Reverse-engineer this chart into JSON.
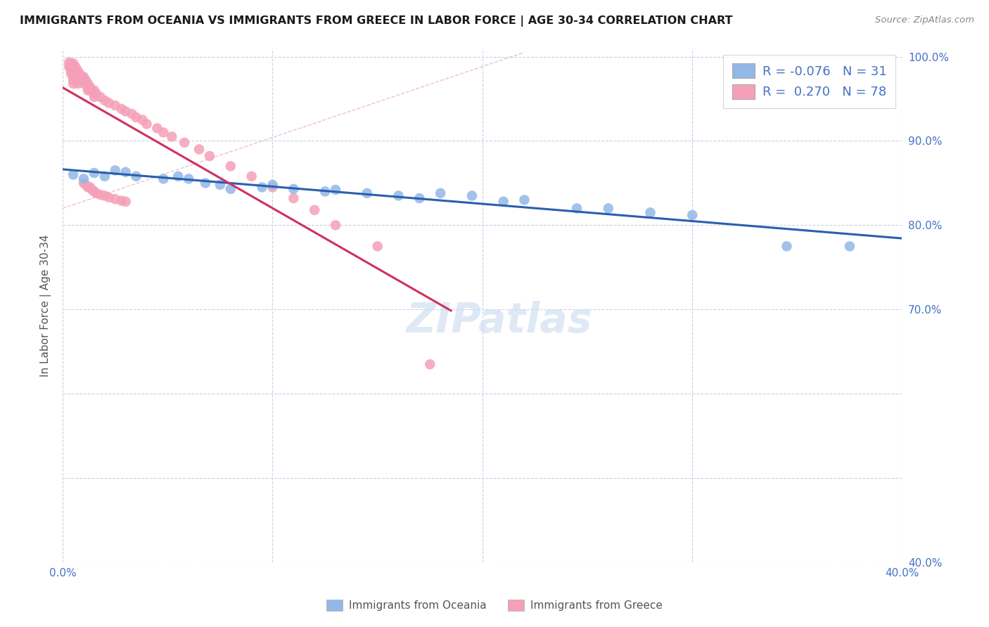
{
  "title": "IMMIGRANTS FROM OCEANIA VS IMMIGRANTS FROM GREECE IN LABOR FORCE | AGE 30-34 CORRELATION CHART",
  "source": "Source: ZipAtlas.com",
  "ylabel": "In Labor Force | Age 30-34",
  "xlim": [
    0.0,
    0.4
  ],
  "ylim": [
    0.4,
    1.01
  ],
  "r_oceania": -0.076,
  "n_oceania": 31,
  "r_greece": 0.27,
  "n_greece": 78,
  "color_oceania": "#92b8e8",
  "color_greece": "#f5a0b8",
  "trendline_oceania": "#2a5fb0",
  "trendline_greece": "#d03060",
  "dashed_line_color": "#e8b0c0",
  "watermark": "ZIPatlas",
  "oceania_x": [
    0.005,
    0.01,
    0.015,
    0.02,
    0.025,
    0.03,
    0.035,
    0.048,
    0.055,
    0.06,
    0.068,
    0.075,
    0.08,
    0.095,
    0.1,
    0.11,
    0.125,
    0.13,
    0.145,
    0.16,
    0.17,
    0.18,
    0.195,
    0.21,
    0.22,
    0.245,
    0.26,
    0.28,
    0.3,
    0.345,
    0.375
  ],
  "oceania_y": [
    0.86,
    0.855,
    0.862,
    0.858,
    0.865,
    0.863,
    0.858,
    0.855,
    0.858,
    0.855,
    0.85,
    0.848,
    0.843,
    0.845,
    0.848,
    0.843,
    0.84,
    0.842,
    0.838,
    0.835,
    0.832,
    0.838,
    0.835,
    0.828,
    0.83,
    0.82,
    0.82,
    0.815,
    0.812,
    0.775,
    0.775
  ],
  "greece_x": [
    0.003,
    0.003,
    0.004,
    0.004,
    0.004,
    0.004,
    0.005,
    0.005,
    0.005,
    0.005,
    0.005,
    0.005,
    0.005,
    0.006,
    0.006,
    0.006,
    0.007,
    0.007,
    0.007,
    0.007,
    0.007,
    0.008,
    0.008,
    0.008,
    0.009,
    0.009,
    0.01,
    0.01,
    0.01,
    0.01,
    0.011,
    0.011,
    0.011,
    0.012,
    0.012,
    0.012,
    0.012,
    0.013,
    0.013,
    0.013,
    0.014,
    0.014,
    0.015,
    0.015,
    0.015,
    0.015,
    0.016,
    0.016,
    0.018,
    0.018,
    0.02,
    0.02,
    0.022,
    0.022,
    0.025,
    0.025,
    0.028,
    0.028,
    0.03,
    0.03,
    0.033,
    0.035,
    0.038,
    0.04,
    0.045,
    0.048,
    0.052,
    0.058,
    0.065,
    0.07,
    0.08,
    0.09,
    0.1,
    0.11,
    0.12,
    0.13,
    0.15,
    0.175
  ],
  "greece_y": [
    0.993,
    0.988,
    0.992,
    0.988,
    0.984,
    0.98,
    0.992,
    0.988,
    0.984,
    0.98,
    0.976,
    0.972,
    0.968,
    0.988,
    0.984,
    0.98,
    0.984,
    0.98,
    0.976,
    0.972,
    0.968,
    0.98,
    0.976,
    0.972,
    0.976,
    0.972,
    0.976,
    0.972,
    0.968,
    0.85,
    0.972,
    0.968,
    0.848,
    0.968,
    0.964,
    0.96,
    0.845,
    0.964,
    0.96,
    0.845,
    0.96,
    0.842,
    0.96,
    0.956,
    0.952,
    0.84,
    0.956,
    0.838,
    0.952,
    0.836,
    0.948,
    0.835,
    0.945,
    0.833,
    0.942,
    0.831,
    0.938,
    0.829,
    0.935,
    0.828,
    0.932,
    0.928,
    0.925,
    0.92,
    0.915,
    0.91,
    0.905,
    0.898,
    0.89,
    0.882,
    0.87,
    0.858,
    0.845,
    0.832,
    0.818,
    0.8,
    0.775,
    0.635
  ]
}
